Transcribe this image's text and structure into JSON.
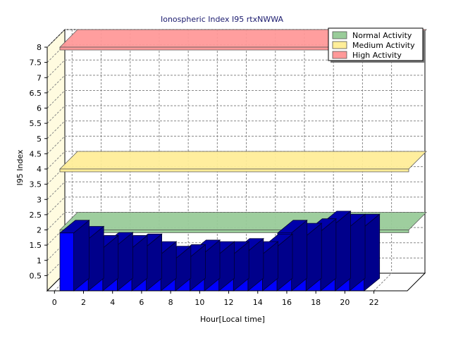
{
  "chart_data": {
    "type": "bar",
    "title": "Ionospheric Index I95 rtxNWWA",
    "xlabel": "Hour[Local time]",
    "ylabel": "I95 Index",
    "ylim": [
      0,
      8
    ],
    "yticks": [
      "0.5",
      "1",
      "1.5",
      "2",
      "2.5",
      "3",
      "3.5",
      "4",
      "4.5",
      "5",
      "5.5",
      "6",
      "6.5",
      "7",
      "7.5",
      "8"
    ],
    "xticks": [
      "0",
      "2",
      "4",
      "6",
      "8",
      "10",
      "12",
      "14",
      "16",
      "18",
      "20",
      "22"
    ],
    "x": [
      0,
      1,
      2,
      3,
      4,
      5,
      6,
      7,
      8,
      9,
      10,
      11,
      12,
      13,
      14,
      15,
      16,
      17,
      18,
      19,
      20
    ],
    "series": [
      {
        "values": [
          1.9,
          1.7,
          1.4,
          1.5,
          1.4,
          1.45,
          1.2,
          1.05,
          1.1,
          1.25,
          1.2,
          1.2,
          1.3,
          1.2,
          1.45,
          1.9,
          1.8,
          1.95,
          2.2,
          2.1,
          2.1
        ],
        "color": "#0000ff"
      }
    ],
    "bands": [
      {
        "name": "Normal Activity",
        "value": 2.0,
        "color": "#99cc99"
      },
      {
        "name": "Medium Activity",
        "value": 4.0,
        "color": "#ffee99"
      },
      {
        "name": "High Activity",
        "value": 8.0,
        "color": "#ff9999"
      }
    ],
    "legend_position": "top-right",
    "grid": true,
    "style": "3d"
  }
}
